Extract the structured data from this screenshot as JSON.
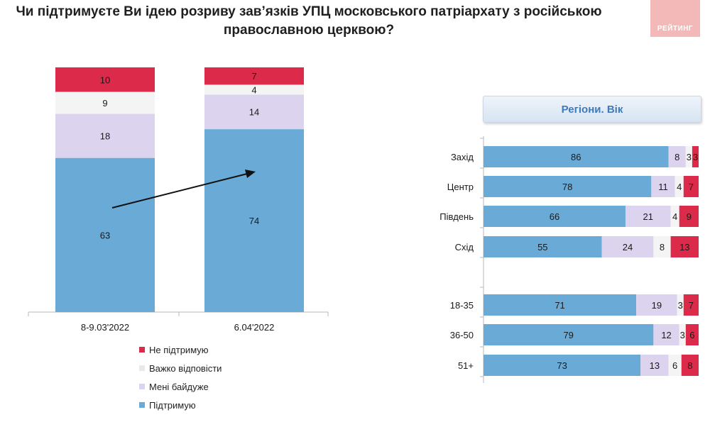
{
  "title": {
    "line1": "Чи підтримуєте Ви ідею розриву зав’язків УПЦ московського патріархату з російською",
    "line2": "православною церквою?"
  },
  "logo": {
    "text": "РЕЙТИНГ"
  },
  "colors": {
    "support": "#6aaad6",
    "indifferent": "#dcd3ef",
    "hard": "#f4f4f4",
    "not_support": "#dc2a4a"
  },
  "legend": [
    {
      "key": "not_support",
      "label": "Не підтримую"
    },
    {
      "key": "hard",
      "label": "Важко відповісти"
    },
    {
      "key": "indifferent",
      "label": "Мені байдуже"
    },
    {
      "key": "support",
      "label": "Підтримую"
    }
  ],
  "chart_data": [
    {
      "type": "bar",
      "stacked": true,
      "orientation": "vertical",
      "categories": [
        "8-9.03'2022",
        "6.04'2022"
      ],
      "series": [
        {
          "name": "Підтримую",
          "key": "support",
          "values": [
            63,
            74
          ]
        },
        {
          "name": "Мені байдуже",
          "key": "indifferent",
          "values": [
            18,
            14
          ]
        },
        {
          "name": "Важко відповісти",
          "key": "hard",
          "values": [
            9,
            4
          ]
        },
        {
          "name": "Не підтримую",
          "key": "not_support",
          "values": [
            10,
            7
          ]
        }
      ],
      "annotation": "arrow from first to second bar (upward trend)"
    },
    {
      "type": "bar",
      "stacked": true,
      "orientation": "horizontal",
      "title": "Регіони. Вік",
      "groups": [
        {
          "categories": [
            "Захід",
            "Центр",
            "Південь",
            "Схід"
          ]
        },
        {
          "categories": [
            "18-35",
            "36-50",
            "51+"
          ]
        }
      ],
      "rows": [
        {
          "label": "Захід",
          "values": [
            86,
            8,
            3,
            3
          ]
        },
        {
          "label": "Центр",
          "values": [
            78,
            11,
            4,
            7
          ]
        },
        {
          "label": "Південь",
          "values": [
            66,
            21,
            4,
            9
          ]
        },
        {
          "label": "Схід",
          "values": [
            55,
            24,
            8,
            13
          ]
        },
        {
          "label": "18-35",
          "values": [
            71,
            19,
            3,
            7
          ]
        },
        {
          "label": "36-50",
          "values": [
            79,
            12,
            3,
            6
          ]
        },
        {
          "label": "51+",
          "values": [
            73,
            13,
            6,
            8
          ]
        }
      ],
      "series_order": [
        "support",
        "indifferent",
        "hard",
        "not_support"
      ]
    }
  ]
}
